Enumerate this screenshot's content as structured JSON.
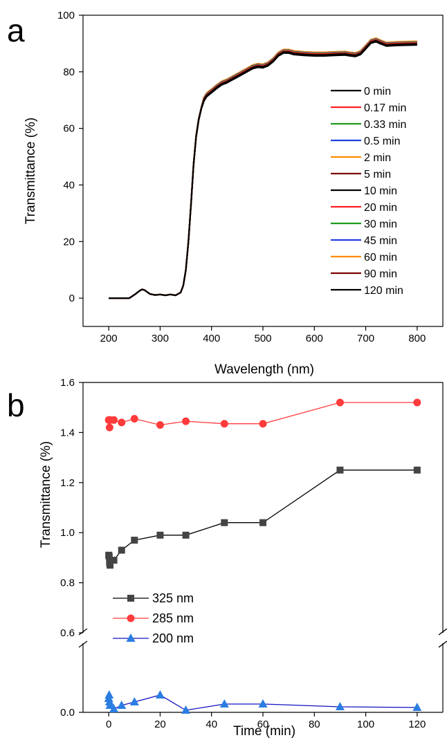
{
  "chart_data": [
    {
      "panel": "a",
      "type": "line",
      "xlabel": "Wavelength (nm)",
      "ylabel": "Transmittance (%)",
      "xlim": [
        150,
        850
      ],
      "ylim": [
        -10,
        100
      ],
      "xticks": [
        200,
        300,
        400,
        500,
        600,
        700,
        800
      ],
      "yticks": [
        0,
        20,
        40,
        60,
        80,
        100
      ],
      "legend_position": "right",
      "x": [
        200,
        230,
        240,
        250,
        260,
        265,
        270,
        280,
        290,
        300,
        310,
        320,
        330,
        340,
        345,
        350,
        355,
        360,
        365,
        370,
        375,
        380,
        385,
        390,
        395,
        400,
        410,
        420,
        430,
        440,
        450,
        460,
        470,
        480,
        490,
        500,
        510,
        520,
        530,
        540,
        550,
        560,
        580,
        600,
        620,
        640,
        660,
        670,
        680,
        690,
        700,
        710,
        720,
        730,
        740,
        760,
        780,
        800
      ],
      "base_values": [
        0,
        0,
        0,
        1.2,
        2.6,
        3.1,
        2.8,
        1.5,
        1.1,
        1.3,
        1.0,
        1.3,
        1.0,
        2.0,
        4.5,
        10,
        20,
        33,
        47,
        57,
        63,
        67,
        70,
        71.5,
        72.3,
        73,
        74.5,
        75.8,
        76.5,
        77.5,
        78.5,
        79.5,
        80.5,
        81.5,
        82,
        81.8,
        82.5,
        84,
        86,
        87,
        87,
        86.5,
        86.2,
        86,
        86,
        86.2,
        86.3,
        86,
        85.8,
        86.5,
        88.5,
        90.5,
        91,
        90.2,
        89.5,
        89.7,
        89.8,
        89.9
      ],
      "series": [
        {
          "name": "0 min",
          "color": "#000000",
          "offset": 0
        },
        {
          "name": "0.17 min",
          "color": "#ff2020",
          "offset": 0.3
        },
        {
          "name": "0.33 min",
          "color": "#1e9a1e",
          "offset": 0.45
        },
        {
          "name": "0.5 min",
          "color": "#2040e0",
          "offset": 0.6
        },
        {
          "name": "2 min",
          "color": "#ff8c00",
          "offset": 0.75
        },
        {
          "name": "5 min",
          "color": "#7a0000",
          "offset": 0.35
        },
        {
          "name": "10 min",
          "color": "#000000",
          "offset": 0.15
        },
        {
          "name": "20 min",
          "color": "#ff2020",
          "offset": 0.5
        },
        {
          "name": "30 min",
          "color": "#1e9a1e",
          "offset": 0.55
        },
        {
          "name": "45 min",
          "color": "#2040e0",
          "offset": 0.7
        },
        {
          "name": "60 min",
          "color": "#ff8c00",
          "offset": 0.9
        },
        {
          "name": "90 min",
          "color": "#7a0000",
          "offset": 0.2
        },
        {
          "name": "120 min",
          "color": "#000000",
          "offset": -0.4
        }
      ]
    },
    {
      "panel": "b",
      "type": "line",
      "xlabel": "Time (min)",
      "ylabel": "Transmittance (%)",
      "xlim": [
        -10,
        130
      ],
      "ylim_lower": [
        0.0,
        0.1
      ],
      "ylim_upper": [
        0.6,
        1.6
      ],
      "xticks": [
        0,
        20,
        40,
        60,
        80,
        100,
        120
      ],
      "yticks_upper": [
        "0.6",
        "0.8",
        "1.0",
        "1.2",
        "1.4",
        "1.6"
      ],
      "yticks_lower": [
        "0.0"
      ],
      "axis_break": true,
      "legend_position": "bottom-left",
      "x": [
        0,
        0.17,
        0.33,
        0.5,
        2,
        5,
        10,
        20,
        30,
        45,
        60,
        90,
        120
      ],
      "series": [
        {
          "name": "325 nm",
          "color": "#444444",
          "line_color": "#000000",
          "marker": "square",
          "values": [
            0.91,
            0.905,
            0.88,
            0.87,
            0.89,
            0.93,
            0.97,
            0.99,
            0.99,
            1.04,
            1.04,
            1.25,
            1.25
          ]
        },
        {
          "name": "285 nm",
          "color": "#ff3b3b",
          "line_color": "#ff3b3b",
          "marker": "circle",
          "values": [
            1.45,
            1.45,
            1.42,
            1.45,
            1.45,
            1.44,
            1.455,
            1.43,
            1.445,
            1.435,
            1.435,
            1.52,
            1.52
          ]
        },
        {
          "name": "200 nm",
          "color": "#2a7de1",
          "line_color": "#1010c0",
          "marker": "triangle",
          "values": [
            0.02,
            0.025,
            0.015,
            0.01,
            0.005,
            0.01,
            0.015,
            0.025,
            0.003,
            0.012,
            0.012,
            0.008,
            0.007
          ]
        }
      ]
    }
  ],
  "panels": {
    "a_letter": "a",
    "b_letter": "b"
  },
  "axes_text": {
    "a_xlabel": "Wavelength (nm)",
    "a_ylabel": "Transmittance (%)",
    "b_xlabel": "Time (min)",
    "b_ylabel": "Transmittance (%)"
  }
}
